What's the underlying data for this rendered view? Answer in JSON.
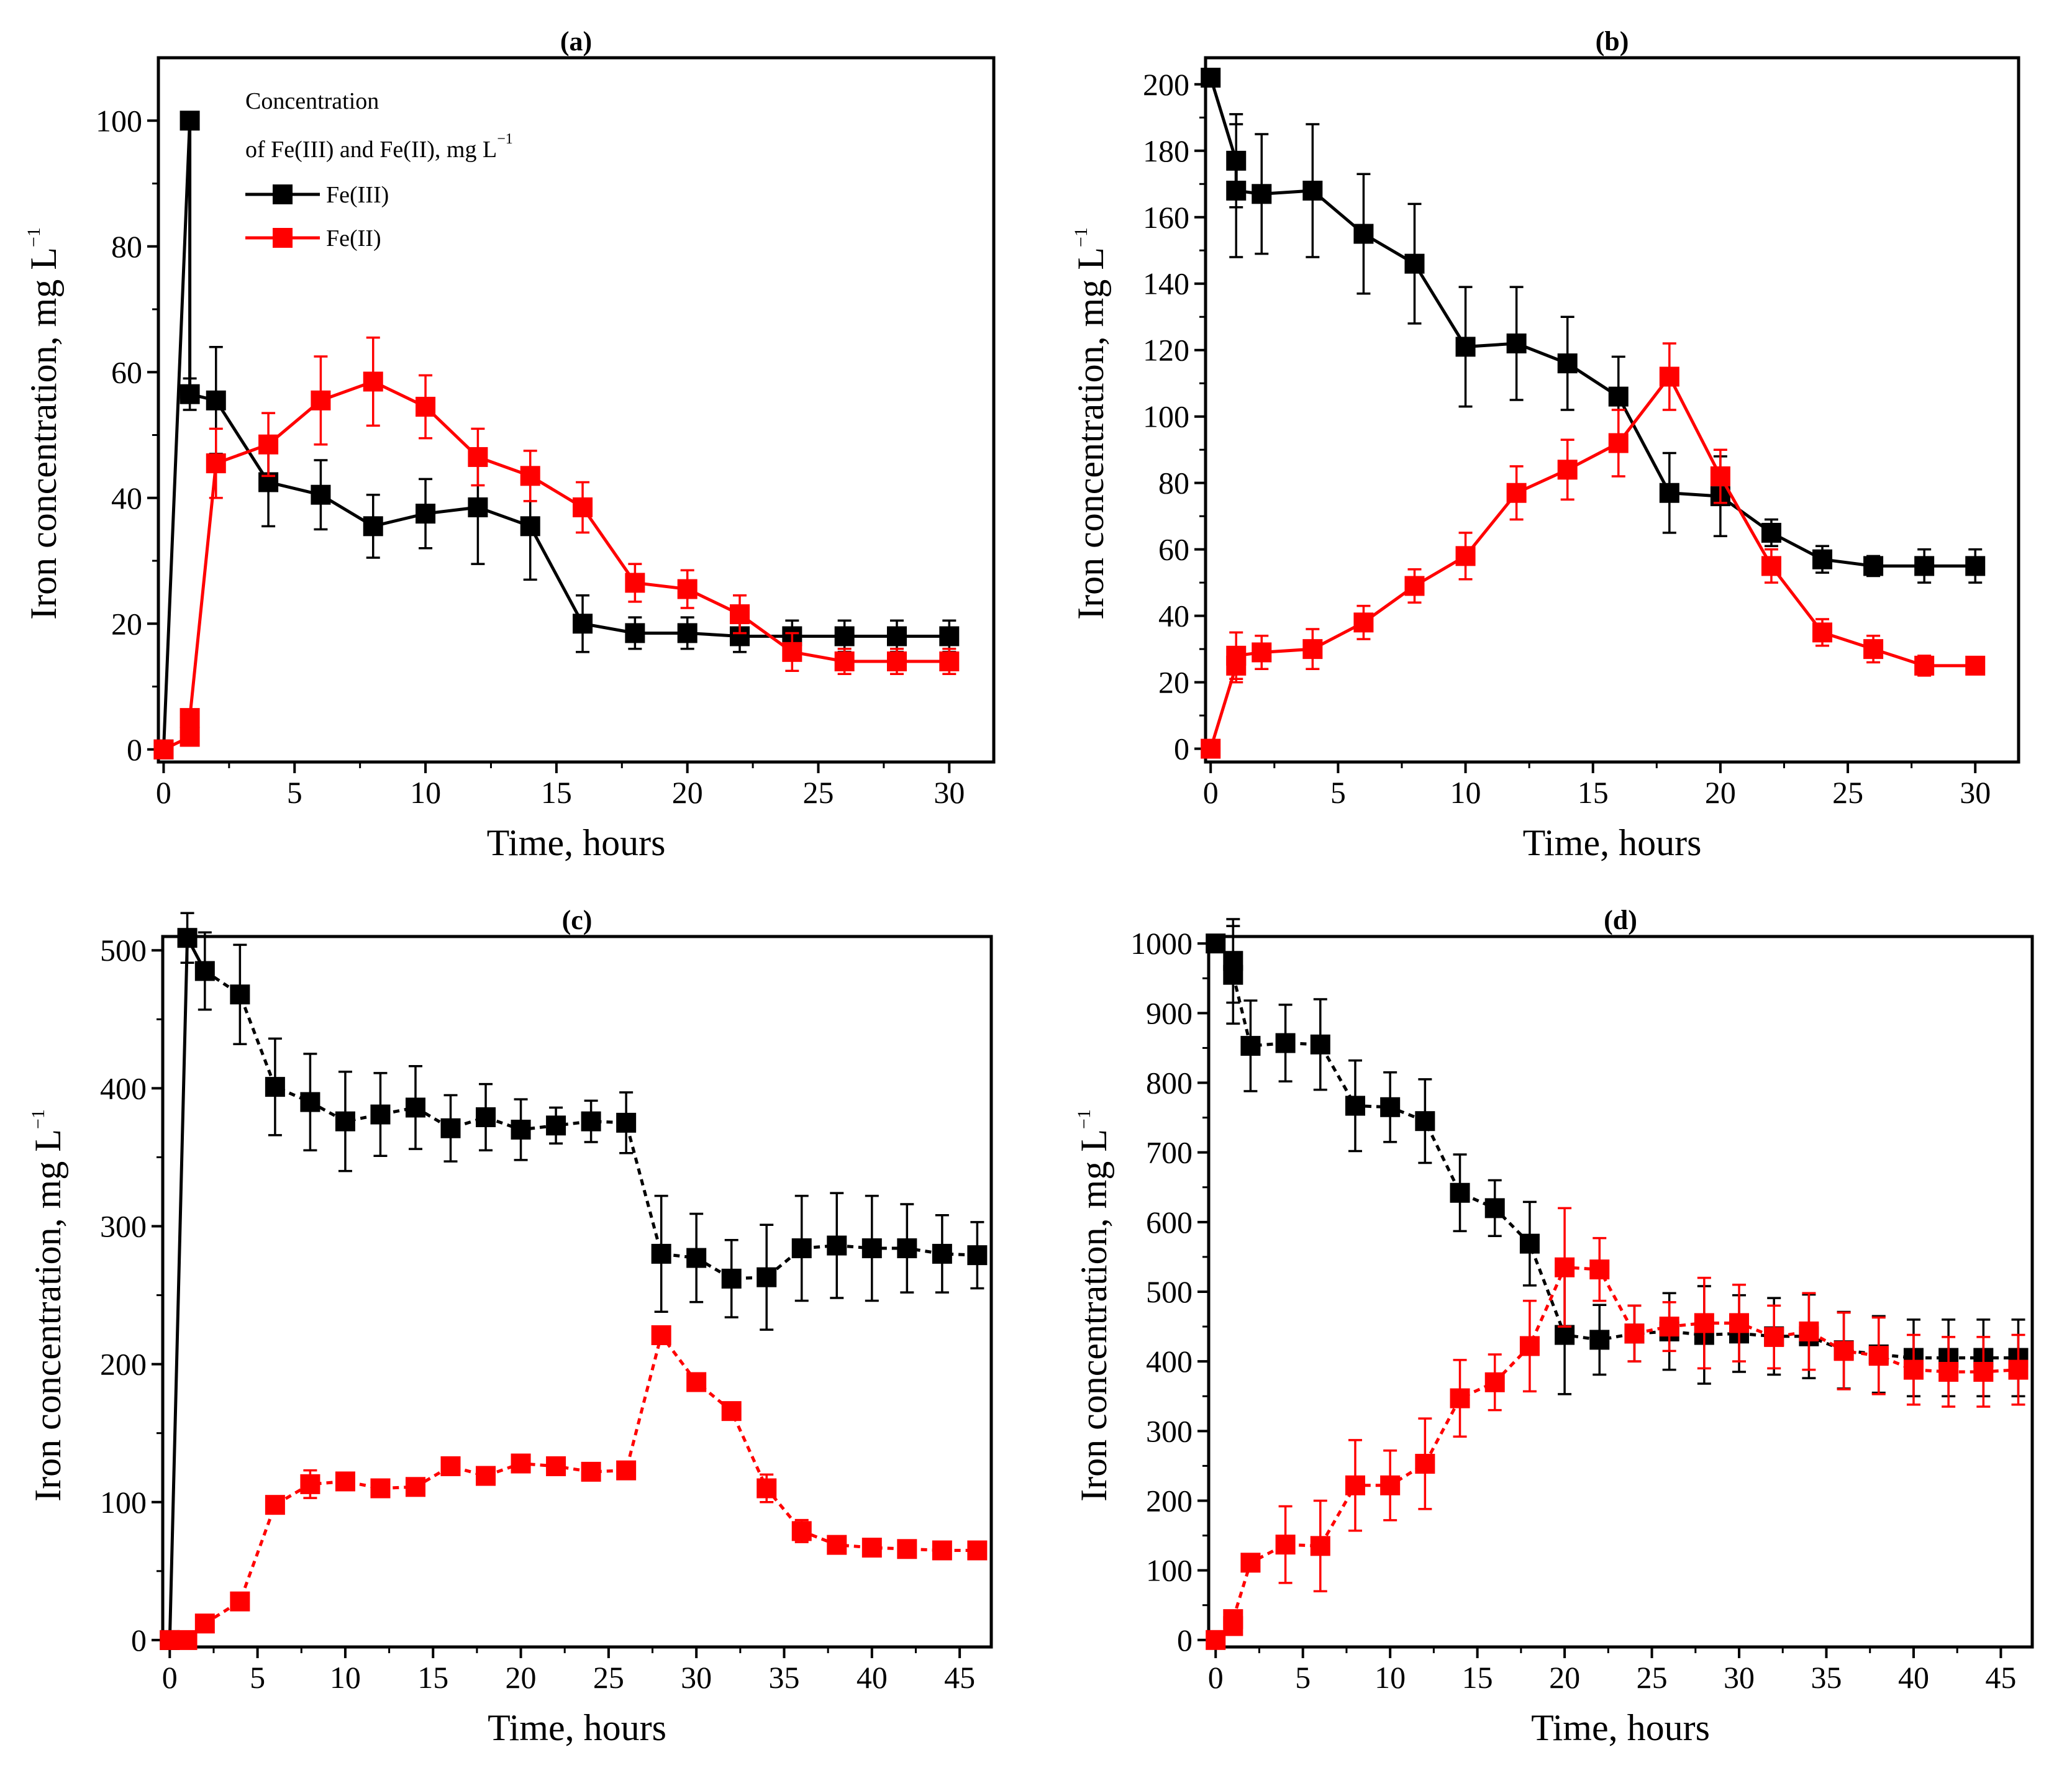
{
  "chart_data": [
    {
      "panel": "a",
      "type": "line",
      "title": "(a)",
      "xlabel": "Time, hours",
      "ylabel": "Iron concentration, mg L",
      "ylabel_sup": "−1",
      "xlim": [
        -0.2,
        31.7
      ],
      "ylim": [
        -2,
        110
      ],
      "xticks": [
        0,
        5,
        10,
        15,
        20,
        25,
        30
      ],
      "yticks": [
        0,
        20,
        40,
        60,
        80,
        100
      ],
      "legend": {
        "title_line1": "Concentration",
        "title_line2": "of Fe(III) and Fe(II), mg L",
        "title_sup": "−1",
        "placement": "top-left"
      },
      "series": [
        {
          "name": "Fe(III)",
          "color": "#000000",
          "dashed_tail": false,
          "x": [
            0,
            1,
            1,
            2,
            4,
            6,
            8,
            10,
            12,
            14,
            16,
            18,
            20,
            22,
            24,
            26,
            28,
            30
          ],
          "y": [
            0,
            100,
            56.5,
            55.5,
            42.5,
            40.5,
            35.5,
            37.5,
            38.5,
            35.5,
            20,
            18.5,
            18.5,
            18,
            18,
            18,
            18,
            18
          ],
          "err": [
            0,
            0,
            2.5,
            8.5,
            7,
            5.5,
            5,
            5.5,
            9,
            8.5,
            4.5,
            2.5,
            2.5,
            2.5,
            2.5,
            2.5,
            2.5,
            2.5
          ]
        },
        {
          "name": "Fe(II)",
          "color": "#ff0000",
          "dashed_tail": false,
          "x": [
            0,
            1,
            1,
            2,
            4,
            6,
            8,
            10,
            12,
            14,
            16,
            18,
            20,
            22,
            24,
            26,
            28,
            30
          ],
          "y": [
            0,
            2,
            5,
            45.5,
            48.5,
            55.5,
            58.5,
            54.5,
            46.5,
            43.5,
            38.5,
            26.5,
            25.5,
            21.5,
            15.5,
            14,
            14,
            14
          ],
          "err": [
            0,
            0,
            0,
            5.5,
            5,
            7,
            7,
            5,
            4.5,
            4,
            4,
            3,
            3,
            3,
            3,
            2,
            2,
            2
          ]
        }
      ]
    },
    {
      "panel": "b",
      "type": "line",
      "title": "(b)",
      "xlabel": "Time, hours",
      "ylabel": "Iron concentration, mg L",
      "ylabel_sup": "−1",
      "xlim": [
        -0.2,
        31.7
      ],
      "ylim": [
        -4,
        208
      ],
      "xticks": [
        0,
        5,
        10,
        15,
        20,
        25,
        30
      ],
      "yticks": [
        0,
        20,
        40,
        60,
        80,
        100,
        120,
        140,
        160,
        180,
        200
      ],
      "series": [
        {
          "name": "Fe(III)",
          "color": "#000000",
          "dashed_tail": false,
          "x": [
            0,
            1,
            1,
            2,
            4,
            6,
            8,
            10,
            12,
            14,
            16,
            18,
            20,
            22,
            24,
            26,
            28,
            30
          ],
          "y": [
            202,
            177,
            168,
            167,
            168,
            155,
            146,
            121,
            122,
            116,
            106,
            77,
            76,
            65,
            57,
            55,
            55,
            55
          ],
          "err": [
            0,
            14,
            20,
            18,
            20,
            18,
            18,
            18,
            17,
            14,
            12,
            12,
            12,
            4,
            4,
            3,
            5,
            5
          ]
        },
        {
          "name": "Fe(II)",
          "color": "#ff0000",
          "dashed_tail": false,
          "x": [
            0,
            1,
            1,
            2,
            4,
            6,
            8,
            10,
            12,
            14,
            16,
            18,
            20,
            22,
            24,
            26,
            28,
            30
          ],
          "y": [
            0,
            25,
            28,
            29,
            30,
            38,
            49,
            58,
            77,
            84,
            92,
            112,
            82,
            55,
            35,
            30,
            25,
            25
          ],
          "err": [
            0,
            5,
            7,
            5,
            6,
            5,
            5,
            7,
            8,
            9,
            10,
            10,
            8,
            5,
            4,
            4,
            3,
            2
          ]
        }
      ]
    },
    {
      "panel": "c",
      "type": "line",
      "title": "(c)",
      "xlabel": "Time, hours",
      "ylabel": "Iron concentration, mg L",
      "ylabel_sup": "−1",
      "xlim": [
        -0.4,
        46.8
      ],
      "ylim": [
        -5,
        510
      ],
      "xticks": [
        0,
        5,
        10,
        15,
        20,
        25,
        30,
        35,
        40,
        45
      ],
      "yticks": [
        0,
        100,
        200,
        300,
        400,
        500
      ],
      "series": [
        {
          "name": "Fe(III)",
          "color": "#000000",
          "dashed_tail": true,
          "x": [
            0,
            1,
            2,
            4,
            6,
            8,
            10,
            12,
            14,
            16,
            18,
            20,
            22,
            24,
            26,
            28,
            30,
            32,
            34,
            36,
            38,
            40,
            42,
            44,
            46
          ],
          "y": [
            0,
            509,
            485,
            468,
            401,
            390,
            376,
            381,
            386,
            371,
            379,
            370,
            373,
            376,
            375,
            280,
            277,
            262,
            263,
            284,
            286,
            284,
            284,
            280,
            279
          ],
          "err": [
            0,
            18,
            28,
            36,
            35,
            35,
            36,
            30,
            30,
            24,
            24,
            22,
            13,
            15,
            22,
            42,
            32,
            28,
            38,
            38,
            38,
            38,
            32,
            28,
            24
          ]
        },
        {
          "name": "Fe(II)",
          "color": "#ff0000",
          "dashed_tail": true,
          "x": [
            0,
            1,
            2,
            4,
            6,
            8,
            10,
            12,
            14,
            16,
            18,
            20,
            22,
            24,
            26,
            28,
            30,
            32,
            34,
            36,
            38,
            40,
            42,
            44,
            46
          ],
          "y": [
            0,
            0,
            12,
            28,
            98,
            113,
            115,
            110,
            111,
            126,
            119,
            128,
            126,
            122,
            123,
            221,
            187,
            166,
            110,
            79,
            69,
            67,
            66,
            65,
            65
          ],
          "err": [
            0,
            0,
            0,
            0,
            0,
            10,
            6,
            0,
            0,
            5,
            0,
            5,
            0,
            0,
            0,
            0,
            0,
            0,
            10,
            8,
            5,
            5,
            5,
            5,
            5
          ]
        }
      ]
    },
    {
      "panel": "d",
      "type": "line",
      "title": "(d)",
      "xlabel": "Time, hours",
      "ylabel": "Iron concentration, mg L",
      "ylabel_sup": "−1",
      "xlim": [
        -0.4,
        46.8
      ],
      "ylim": [
        -10,
        1010
      ],
      "xticks": [
        0,
        5,
        10,
        15,
        20,
        25,
        30,
        35,
        40,
        45
      ],
      "yticks": [
        0,
        100,
        200,
        300,
        400,
        500,
        600,
        700,
        800,
        900,
        1000
      ],
      "series": [
        {
          "name": "Fe(III)",
          "color": "#000000",
          "dashed_tail": true,
          "x": [
            0,
            1,
            1,
            2,
            4,
            6,
            8,
            10,
            12,
            14,
            16,
            18,
            20,
            22,
            24,
            26,
            28,
            30,
            32,
            34,
            36,
            38,
            40,
            42,
            44,
            46
          ],
          "y": [
            1000,
            975,
            955,
            853,
            857,
            855,
            767,
            765,
            745,
            642,
            620,
            569,
            438,
            431,
            440,
            443,
            438,
            440,
            436,
            436,
            416,
            410,
            405,
            405,
            405,
            405
          ],
          "err": [
            0,
            60,
            70,
            65,
            55,
            65,
            65,
            50,
            60,
            55,
            40,
            60,
            85,
            50,
            40,
            55,
            70,
            55,
            55,
            60,
            55,
            55,
            55,
            55,
            55,
            55
          ]
        },
        {
          "name": "Fe(II)",
          "color": "#ff0000",
          "dashed_tail": true,
          "x": [
            0,
            1,
            1,
            2,
            4,
            6,
            8,
            10,
            12,
            14,
            16,
            18,
            20,
            22,
            24,
            26,
            28,
            30,
            32,
            34,
            36,
            38,
            40,
            42,
            44,
            46
          ],
          "y": [
            0,
            20,
            30,
            111,
            137,
            135,
            222,
            222,
            253,
            347,
            370,
            422,
            535,
            532,
            440,
            450,
            455,
            455,
            435,
            443,
            415,
            408,
            388,
            385,
            385,
            388
          ],
          "err": [
            0,
            0,
            0,
            0,
            55,
            65,
            65,
            50,
            65,
            55,
            40,
            65,
            85,
            45,
            40,
            35,
            65,
            55,
            45,
            55,
            55,
            55,
            50,
            50,
            50,
            50
          ]
        }
      ]
    }
  ]
}
